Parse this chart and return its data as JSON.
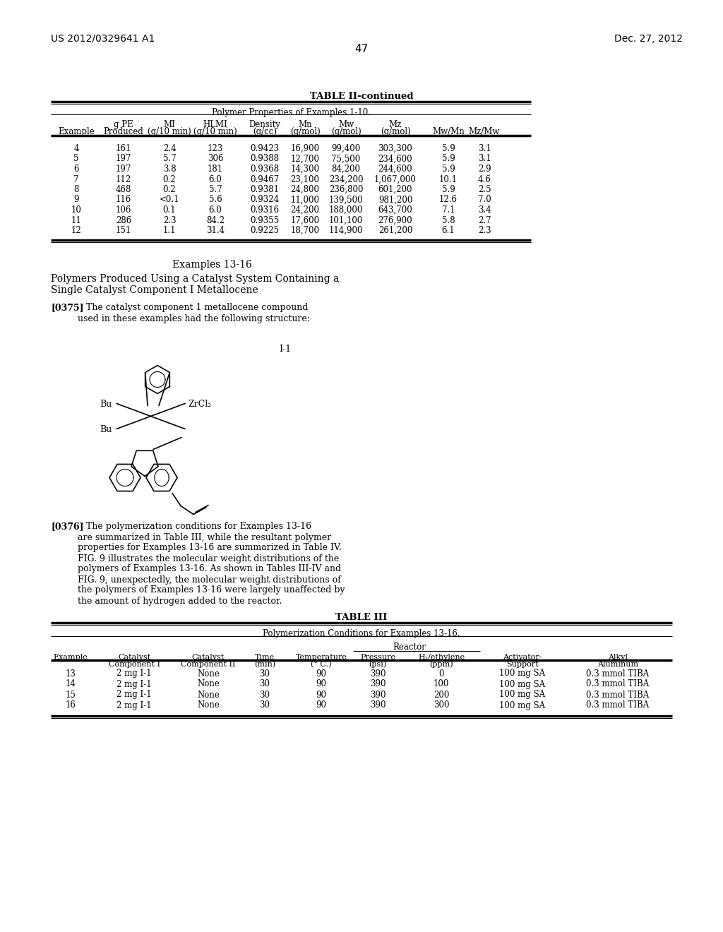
{
  "page_number": "47",
  "left_header": "US 2012/0329641 A1",
  "right_header": "Dec. 27, 2012",
  "table2_title": "TABLE II-continued",
  "table2_subtitle": "Polymer Properties of Examples 1-10.",
  "table2_data": [
    [
      "4",
      "161",
      "2.4",
      "123",
      "0.9423",
      "16,900",
      "99,400",
      "303,300",
      "5.9",
      "3.1"
    ],
    [
      "5",
      "197",
      "5.7",
      "306",
      "0.9388",
      "12,700",
      "75,500",
      "234,600",
      "5.9",
      "3.1"
    ],
    [
      "6",
      "197",
      "3.8",
      "181",
      "0.9368",
      "14,300",
      "84,200",
      "244,600",
      "5.9",
      "2.9"
    ],
    [
      "7",
      "112",
      "0.2",
      "6.0",
      "0.9467",
      "23,100",
      "234,200",
      "1,067,000",
      "10.1",
      "4.6"
    ],
    [
      "8",
      "468",
      "0.2",
      "5.7",
      "0.9381",
      "24,800",
      "236,800",
      "601,200",
      "5.9",
      "2.5"
    ],
    [
      "9",
      "116",
      "<0.1",
      "5.6",
      "0.9324",
      "11,000",
      "139,500",
      "981,200",
      "12.6",
      "7.0"
    ],
    [
      "10",
      "106",
      "0.1",
      "6.0",
      "0.9316",
      "24,200",
      "188,000",
      "643,700",
      "7.1",
      "3.4"
    ],
    [
      "11",
      "286",
      "2.3",
      "84.2",
      "0.9355",
      "17,600",
      "101,100",
      "276,900",
      "5.8",
      "2.7"
    ],
    [
      "12",
      "151",
      "1.1",
      "31.4",
      "0.9225",
      "18,700",
      "114,900",
      "261,200",
      "6.1",
      "2.3"
    ]
  ],
  "section_title": "Examples 13-16",
  "section_subtitle_line1": "Polymers Produced Using a Catalyst System Containing a",
  "section_subtitle_line2": "Single Catalyst Component I Metallocene",
  "para0375_bold": "[0375]",
  "para0375_text": "   The catalyst component 1 metallocene compound\nused in these examples had the following structure:",
  "chemical_label": "I-1",
  "bu1_label": "Bu",
  "bu2_label": "Bu",
  "zrcl2_label": "ZrCl₂",
  "para0376_bold": "[0376]",
  "para0376_text": "   The polymerization conditions for Examples 13-16\nare summarized in Table III, while the resultant polymer\nproperties for Examples 13-16 are summarized in Table IV.\nFIG. 9 illustrates the molecular weight distributions of the\npolymers of Examples 13-16. As shown in Tables III-IV and\nFIG. 9, unexpectedly, the molecular weight distributions of\nthe polymers of Examples 13-16 were largely unaffected by\nthe amount of hydrogen added to the reactor.",
  "table3_title": "TABLE III",
  "table3_subtitle": "Polymerization Conditions for Examples 13-16.",
  "table3_reactor_header": "Reactor",
  "table3_data": [
    [
      "13",
      "2 mg I-1",
      "None",
      "30",
      "90",
      "390",
      "0",
      "100 mg SA",
      "0.3 mmol TIBA"
    ],
    [
      "14",
      "2 mg I-1",
      "None",
      "30",
      "90",
      "390",
      "100",
      "100 mg SA",
      "0.3 mmol TIBA"
    ],
    [
      "15",
      "2 mg I-1",
      "None",
      "30",
      "90",
      "390",
      "200",
      "100 mg SA",
      "0.3 mmol TIBA"
    ],
    [
      "16",
      "2 mg I-1",
      "None",
      "30",
      "90",
      "390",
      "300",
      "100 mg SA",
      "0.3 mmol TIBA"
    ]
  ],
  "bg_color": "#ffffff",
  "text_color": "#000000"
}
